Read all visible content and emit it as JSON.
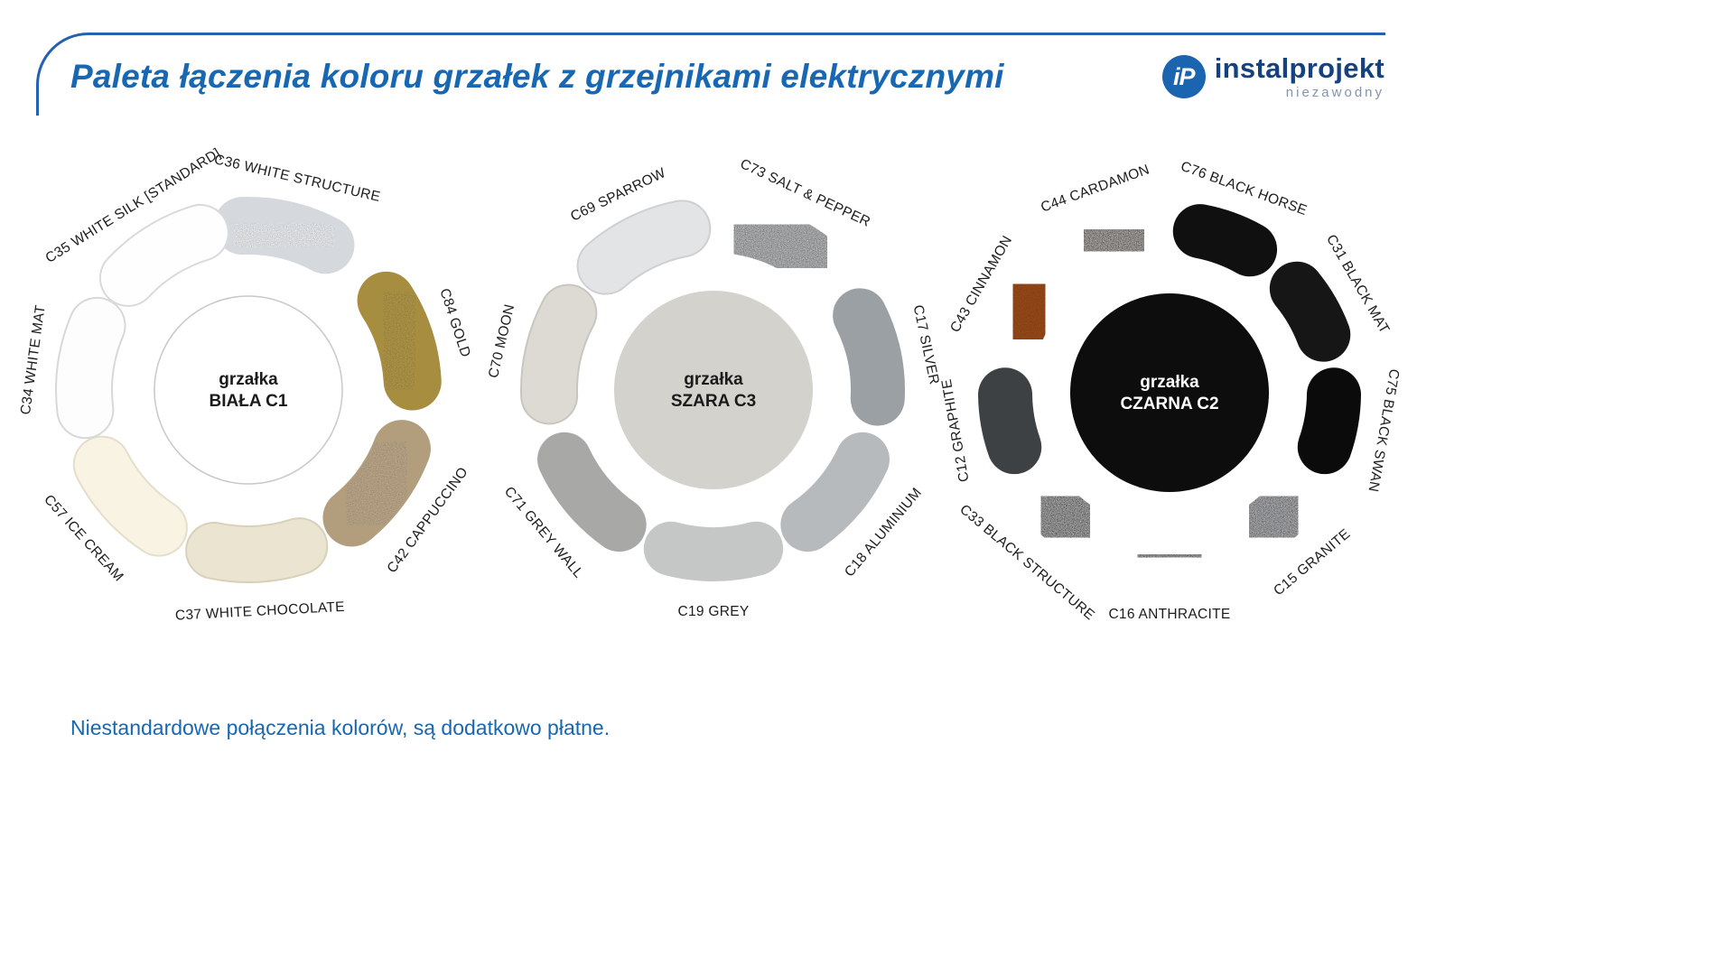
{
  "page": {
    "title": "Paleta łączenia koloru grzałek z grzejnikami elektrycznymi",
    "footer_note": "Niestandardowe połączenia kolorów, są dodatkowo płatne."
  },
  "logo": {
    "monogram": "iP",
    "brand": "instalprojekt",
    "tagline": "niezawodny"
  },
  "theme": {
    "accent_blue": "#1767b2",
    "line_blue": "#2461ae",
    "brand_navy": "#15427f",
    "tagline_gray": "#8494ad"
  },
  "chart_data": {
    "type": "palette-wheels",
    "wheels": [
      {
        "name": "grzałka BIAŁA C1",
        "center_label": [
          "grzałka",
          "BIAŁA C1"
        ],
        "center_fill": "#ffffff",
        "center_stroke": "#c8c8c8",
        "center_text_color": "#1b1b1b",
        "segments": [
          {
            "label": "C36 WHITE STRUCTURE",
            "color": "#edeff2",
            "outline": "#d5d8dc",
            "angle": 13,
            "flip": false,
            "texture": "dark"
          },
          {
            "label": "C84 GOLD",
            "color": "#b49a4c",
            "outline": "#a78d3f",
            "angle": 72,
            "flip": false,
            "texture": "dark"
          },
          {
            "label": "C42 CAPPUCCINO",
            "color": "#c0ab8c",
            "outline": "#b29d7d",
            "angle": 126,
            "flip": true,
            "texture": "dark"
          },
          {
            "label": "C37 WHITE CHOCOLATE",
            "color": "#eae4d1",
            "outline": "#d8d1ba",
            "angle": 177,
            "flip": true,
            "texture": null
          },
          {
            "label": "C57 ICE CREAM",
            "color": "#f8f3e2",
            "outline": "#e4decb",
            "angle": 228,
            "flip": true,
            "texture": null
          },
          {
            "label": "C34 WHITE MAT",
            "color": "#fdfdfd",
            "outline": "#d8d8d8",
            "angle": 278,
            "flip": false,
            "texture": null
          },
          {
            "label": "C35 WHITE SILK [STANDARD]",
            "color": "#fefefe",
            "outline": "#dadada",
            "angle": 328,
            "flip": false,
            "texture": null
          }
        ]
      },
      {
        "name": "grzałka SZARA C3",
        "center_label": [
          "grzałka",
          "SZARA C3"
        ],
        "center_fill": "#d4d2cc",
        "center_stroke": null,
        "center_text_color": "#1b1b1b",
        "segments": [
          {
            "label": "C73 SALT & PEPPER",
            "color": "#717476",
            "outline": null,
            "angle": 25,
            "flip": false,
            "texture": "light"
          },
          {
            "label": "C17 SILVER",
            "color": "#9aa0a4",
            "outline": null,
            "angle": 78,
            "flip": false,
            "texture": null
          },
          {
            "label": "C18 ALUMINIUM",
            "color": "#b7babc",
            "outline": null,
            "angle": 130,
            "flip": true,
            "texture": null
          },
          {
            "label": "C19 GREY",
            "color": "#c5c6c6",
            "outline": null,
            "angle": 180,
            "flip": true,
            "texture": null
          },
          {
            "label": "C71 GREY WALL",
            "color": "#a8a8a6",
            "outline": null,
            "angle": 230,
            "flip": true,
            "texture": null
          },
          {
            "label": "C70 MOON",
            "color": "#dcdad3",
            "outline": "#c8c6bf",
            "angle": 283,
            "flip": false,
            "texture": null
          },
          {
            "label": "C69 SPARROW",
            "color": "#e3e4e6",
            "outline": "#cfd0d2",
            "angle": 334,
            "flip": false,
            "texture": null
          }
        ]
      },
      {
        "name": "grzałka CZARNA C2",
        "center_label": [
          "grzałka",
          "CZARNA C2"
        ],
        "center_fill": "#0d0d0d",
        "center_stroke": null,
        "center_text_color": "#ffffff",
        "segments": [
          {
            "label": "C76 BLACK HORSE",
            "color": "#101010",
            "outline": null,
            "angle": 20,
            "flip": false,
            "texture": null
          },
          {
            "label": "C31 BLACK MAT",
            "color": "#161616",
            "outline": null,
            "angle": 60,
            "flip": false,
            "texture": null
          },
          {
            "label": "C75 BLACK SWAN",
            "color": "#0b0b0c",
            "outline": null,
            "angle": 100,
            "flip": false,
            "texture": null
          },
          {
            "label": "C15 GRANITE",
            "color": "#54575b",
            "outline": null,
            "angle": 140,
            "flip": true,
            "texture": "light"
          },
          {
            "label": "C16 ANTHRACITE",
            "color": "#3f3937",
            "outline": null,
            "angle": 180,
            "flip": true,
            "texture": "light"
          },
          {
            "label": "C33 BLACK STRUCTURE",
            "color": "#424244",
            "outline": null,
            "angle": 220,
            "flip": true,
            "texture": "light"
          },
          {
            "label": "C12 GRAPHITE",
            "color": "#3e4144",
            "outline": null,
            "angle": 260,
            "flip": false,
            "texture": null
          },
          {
            "label": "C43 CINNAMON",
            "color": "#9b4d1e",
            "outline": null,
            "angle": 300,
            "flip": false,
            "texture": "dark"
          },
          {
            "label": "C44 CARDAMON",
            "color": "#4d443a",
            "outline": null,
            "angle": 340,
            "flip": false,
            "texture": "light"
          }
        ]
      }
    ]
  }
}
